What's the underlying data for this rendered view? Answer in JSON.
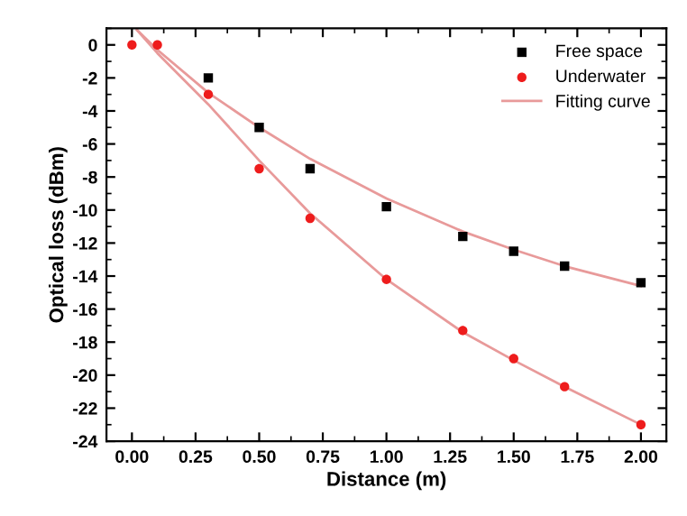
{
  "chart_data": {
    "type": "scatter",
    "xlabel": "Distance (m)",
    "ylabel": "Optical loss (dBm)",
    "xlim": [
      -0.1,
      2.1
    ],
    "ylim": [
      -24,
      1
    ],
    "xticks": [
      {
        "value": 0,
        "label": "0.00"
      },
      {
        "value": 0.25,
        "label": "0.25"
      },
      {
        "value": 0.5,
        "label": "0.50"
      },
      {
        "value": 0.75,
        "label": "0.75"
      },
      {
        "value": 1,
        "label": "1.00"
      },
      {
        "value": 1.25,
        "label": "1.25"
      },
      {
        "value": 1.5,
        "label": "1.50"
      },
      {
        "value": 1.75,
        "label": "1.75"
      },
      {
        "value": 2,
        "label": "2.00"
      }
    ],
    "yticks": [
      0,
      -2,
      -4,
      -6,
      -8,
      -10,
      -12,
      -14,
      -16,
      -18,
      -20,
      -22,
      -24
    ],
    "grid": false,
    "legend": "top right",
    "series": [
      {
        "name": "Free space",
        "marker": "square",
        "color": "#000000",
        "x": [
          0.3,
          0.5,
          0.7,
          1.0,
          1.3,
          1.5,
          1.7,
          2.0
        ],
        "values": [
          -2,
          -5,
          -7.5,
          -9.8,
          -11.6,
          -12.5,
          -13.4,
          -14.4
        ]
      },
      {
        "name": "Underwater",
        "marker": "circle",
        "color": "#ee1c1c",
        "x": [
          0.0,
          0.1,
          0.3,
          0.5,
          0.7,
          1.0,
          1.3,
          1.5,
          1.7,
          2.0
        ],
        "values": [
          0,
          0,
          -3,
          -7.5,
          -10.5,
          -14.2,
          -17.3,
          -19,
          -20.7,
          -23
        ]
      },
      {
        "name": "Fitting curve",
        "type": "line",
        "marker": "none",
        "line_style": "solid",
        "color": "#e89a9a",
        "x": [
          0.02,
          0.1,
          0.3,
          0.5,
          0.7,
          1.0,
          1.3,
          1.5,
          1.7,
          2.0
        ],
        "values": [
          0.9,
          -0.3,
          -2.9,
          -5.0,
          -6.9,
          -9.3,
          -11.3,
          -12.4,
          -13.4,
          -14.6
        ]
      },
      {
        "type": "line",
        "marker": "none",
        "line_style": "solid",
        "color": "#e89a9a",
        "x": [
          0.02,
          0.1,
          0.3,
          0.5,
          0.7,
          1.0,
          1.3,
          1.5,
          1.7,
          2.0
        ],
        "values": [
          0.9,
          -0.5,
          -3.6,
          -7.0,
          -10.2,
          -14.2,
          -17.4,
          -19.1,
          -20.7,
          -23.0
        ]
      }
    ]
  }
}
